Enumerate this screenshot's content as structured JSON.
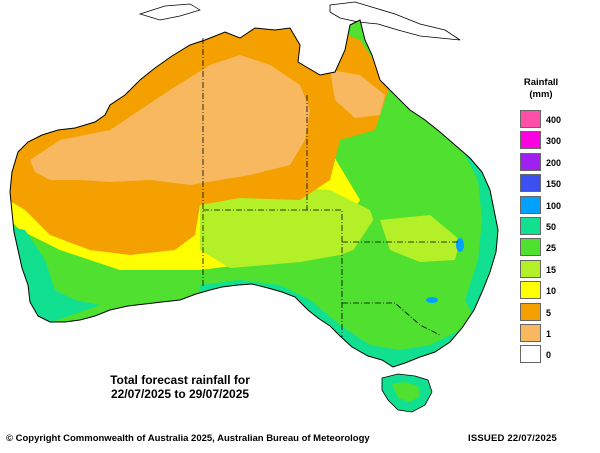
{
  "map": {
    "caption_line1": "Total forecast rainfall for",
    "caption_line2": "22/07/2025 to 29/07/2025"
  },
  "legend": {
    "title_line1": "Rainfall",
    "title_line2": "(mm)",
    "items": [
      {
        "label": "400",
        "color": "#ff4fa8"
      },
      {
        "label": "300",
        "color": "#ff00e0"
      },
      {
        "label": "200",
        "color": "#a020f0"
      },
      {
        "label": "150",
        "color": "#3c50f0"
      },
      {
        "label": "100",
        "color": "#00a0ff"
      },
      {
        "label": "50",
        "color": "#10e090"
      },
      {
        "label": "25",
        "color": "#50e030"
      },
      {
        "label": "15",
        "color": "#b4f028"
      },
      {
        "label": "10",
        "color": "#ffff00"
      },
      {
        "label": "5",
        "color": "#f4a000"
      },
      {
        "label": "1",
        "color": "#f8b860"
      },
      {
        "label": "0",
        "color": "#ffffff"
      }
    ]
  },
  "footer": {
    "copyright": "© Copyright Commonwealth of Australia 2025, Australian Bureau of Meteorology",
    "issued": "ISSUED 22/07/2025"
  }
}
